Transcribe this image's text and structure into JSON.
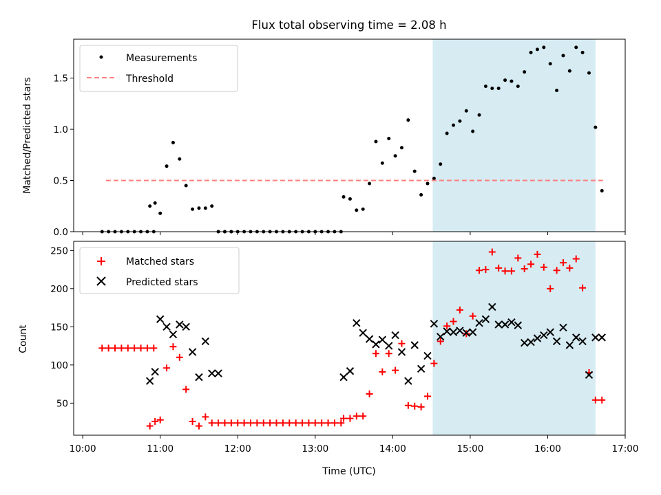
{
  "chart_data": {
    "type": "scatter",
    "title": "Flux total observing time = 2.08 h",
    "xlabel": "Time (UTC)",
    "x_ticks": [
      "10:00",
      "11:00",
      "12:00",
      "13:00",
      "14:00",
      "15:00",
      "16:00",
      "17:00"
    ],
    "highlight_span": {
      "start": "14:31",
      "end": "16:37",
      "color": "#add8e6"
    },
    "panels": [
      {
        "ylabel": "Matched/Predicted stars",
        "ylim": [
          0,
          1.88
        ],
        "y_ticks": [
          0.0,
          0.5,
          1.0,
          1.5
        ],
        "legend": {
          "location": "upper-left",
          "entries": [
            "Measurements",
            "Threshold"
          ]
        },
        "series": [
          {
            "name": "Measurements",
            "marker": "dot",
            "color": "#000000",
            "x": [
              "10:15",
              "10:20",
              "10:25",
              "10:30",
              "10:35",
              "10:40",
              "10:45",
              "10:50",
              "10:55",
              "10:52",
              "10:56",
              "11:00",
              "11:05",
              "11:10",
              "11:15",
              "11:20",
              "11:25",
              "11:30",
              "11:35",
              "11:40",
              "11:45",
              "11:50",
              "11:55",
              "11:45",
              "11:50",
              "11:55",
              "12:00",
              "12:05",
              "12:10",
              "12:15",
              "12:20",
              "12:25",
              "12:30",
              "12:35",
              "12:40",
              "12:45",
              "12:50",
              "12:55",
              "13:00",
              "13:05",
              "13:10",
              "13:15",
              "13:20",
              "13:22",
              "13:27",
              "13:32",
              "13:37",
              "13:42",
              "13:47",
              "13:52",
              "13:57",
              "14:02",
              "14:07",
              "14:12",
              "14:17",
              "14:22",
              "14:27",
              "14:32",
              "14:37",
              "14:42",
              "14:47",
              "14:52",
              "14:57",
              "15:02",
              "15:07",
              "15:12",
              "15:17",
              "15:22",
              "15:27",
              "15:32",
              "15:37",
              "15:42",
              "15:47",
              "15:52",
              "15:57",
              "16:02",
              "16:07",
              "16:12",
              "16:17",
              "16:22",
              "16:27",
              "16:32",
              "16:37",
              "16:42"
            ],
            "y": [
              0,
              0,
              0,
              0,
              0,
              0,
              0,
              0,
              0,
              0.25,
              0.28,
              0.18,
              0.64,
              0.87,
              0.71,
              0.45,
              0.22,
              0.23,
              0.23,
              0.25,
              0.0,
              0.0,
              0.0,
              0,
              0,
              0,
              0,
              0,
              0,
              0,
              0,
              0,
              0,
              0,
              0,
              0,
              0,
              0,
              0,
              0,
              0,
              0,
              0,
              0.34,
              0.32,
              0.21,
              0.22,
              0.47,
              0.88,
              0.67,
              0.91,
              0.74,
              0.82,
              1.09,
              0.59,
              0.36,
              0.47,
              0.52,
              0.66,
              0.96,
              1.04,
              1.08,
              1.18,
              0.98,
              1.14,
              1.42,
              1.4,
              1.4,
              1.48,
              1.47,
              1.42,
              1.56,
              1.75,
              1.78,
              1.8,
              1.64,
              1.38,
              1.72,
              1.57,
              1.8,
              1.75,
              1.55,
              1.02,
              0.4
            ]
          },
          {
            "name": "Threshold",
            "marker": "dashed-line",
            "color": "#ff7f7f",
            "x": [
              "10:18",
              "16:45"
            ],
            "y": [
              0.5,
              0.5
            ]
          }
        ]
      },
      {
        "ylabel": "Count",
        "ylim": [
          8,
          262
        ],
        "y_ticks": [
          50,
          100,
          150,
          200,
          250
        ],
        "legend": {
          "location": "upper-left",
          "entries": [
            "Matched stars",
            "Predicted stars"
          ]
        },
        "series": [
          {
            "name": "Matched stars",
            "marker": "plus",
            "color": "#ff0000",
            "x": [
              "10:15",
              "10:20",
              "10:25",
              "10:30",
              "10:35",
              "10:40",
              "10:45",
              "10:50",
              "10:55",
              "10:52",
              "10:56",
              "11:00",
              "11:05",
              "11:10",
              "11:15",
              "11:20",
              "11:25",
              "11:30",
              "11:35",
              "11:40",
              "11:45",
              "11:50",
              "11:55",
              "12:00",
              "12:05",
              "12:10",
              "12:15",
              "12:20",
              "12:25",
              "12:30",
              "12:35",
              "12:40",
              "12:45",
              "12:50",
              "12:55",
              "13:00",
              "13:05",
              "13:10",
              "13:15",
              "13:20",
              "13:22",
              "13:27",
              "13:32",
              "13:37",
              "13:42",
              "13:47",
              "13:52",
              "13:57",
              "14:02",
              "14:07",
              "14:12",
              "14:17",
              "14:22",
              "14:27",
              "14:32",
              "14:37",
              "14:42",
              "14:47",
              "14:52",
              "14:57",
              "15:02",
              "15:07",
              "15:12",
              "15:17",
              "15:22",
              "15:27",
              "15:32",
              "15:37",
              "15:42",
              "15:47",
              "15:52",
              "15:57",
              "16:02",
              "16:07",
              "16:12",
              "16:17",
              "16:22",
              "16:27",
              "16:32",
              "16:37",
              "16:42"
            ],
            "y": [
              122,
              122,
              122,
              122,
              122,
              122,
              122,
              122,
              122,
              20,
              26,
              28,
              96,
              124,
              110,
              68,
              26,
              20,
              32,
              24,
              24,
              24,
              24,
              24,
              24,
              24,
              24,
              24,
              24,
              24,
              24,
              24,
              24,
              24,
              24,
              24,
              24,
              24,
              24,
              24,
              30,
              30,
              33,
              33,
              62,
              115,
              91,
              115,
              93,
              128,
              47,
              46,
              45,
              59,
              102,
              131,
              151,
              157,
              172,
              141,
              164,
              224,
              225,
              248,
              227,
              223,
              223,
              240,
              226,
              232,
              245,
              228,
              200,
              224,
              234,
              227,
              239,
              201,
              90,
              54,
              54
            ]
          },
          {
            "name": "Predicted stars",
            "marker": "x",
            "color": "#000000",
            "x": [
              "10:52",
              "10:56",
              "11:00",
              "11:05",
              "11:10",
              "11:15",
              "11:20",
              "11:25",
              "11:30",
              "11:35",
              "11:40",
              "11:45",
              "13:22",
              "13:27",
              "13:32",
              "13:37",
              "13:42",
              "13:47",
              "13:52",
              "13:57",
              "14:02",
              "14:07",
              "14:12",
              "14:17",
              "14:22",
              "14:27",
              "14:32",
              "14:37",
              "14:42",
              "14:47",
              "14:52",
              "14:57",
              "15:02",
              "15:07",
              "15:12",
              "15:17",
              "15:22",
              "15:27",
              "15:32",
              "15:37",
              "15:42",
              "15:47",
              "15:52",
              "15:57",
              "16:02",
              "16:07",
              "16:12",
              "16:17",
              "16:22",
              "16:27",
              "16:32",
              "16:37",
              "16:42"
            ],
            "y": [
              79,
              91,
              160,
              150,
              140,
              153,
              150,
              117,
              84,
              131,
              89,
              89,
              84,
              92,
              155,
              142,
              134,
              127,
              133,
              125,
              139,
              117,
              79,
              126,
              95,
              112,
              154,
              137,
              144,
              143,
              145,
              142,
              143,
              155,
              160,
              176,
              153,
              153,
              156,
              152,
              129,
              130,
              135,
              139,
              143,
              131,
              149,
              126,
              136,
              131,
              87,
              136,
              136
            ]
          }
        ]
      }
    ]
  }
}
